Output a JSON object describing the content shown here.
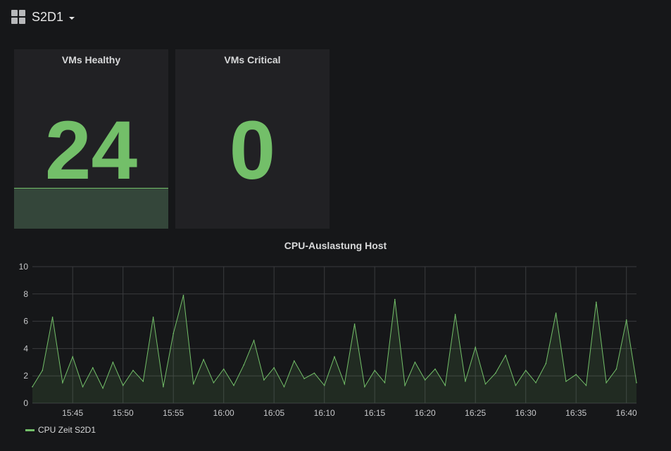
{
  "header": {
    "title": "S2D1"
  },
  "panels": [
    {
      "title": "VMs Healthy",
      "value": "24"
    },
    {
      "title": "VMs Critical",
      "value": "0"
    }
  ],
  "graph": {
    "title": "CPU-Auslastung Host",
    "legend": [
      {
        "name": "CPU Zeit S2D1",
        "color": "#73bf69"
      }
    ]
  },
  "chart_data": {
    "type": "line",
    "title": "CPU-Auslastung Host",
    "xlabel": "",
    "ylabel": "",
    "ylim": [
      0,
      10
    ],
    "yticks": [
      "0",
      "2",
      "4",
      "6",
      "8",
      "10"
    ],
    "xlim": [
      "15:41",
      "16:41"
    ],
    "xticks": [
      "15:45",
      "15:50",
      "15:55",
      "16:00",
      "16:05",
      "16:10",
      "16:15",
      "16:20",
      "16:25",
      "16:30",
      "16:35",
      "16:40"
    ],
    "grid": true,
    "legend_position": "bottom-left",
    "series": [
      {
        "name": "CPU Zeit S2D1",
        "color": "#73bf69",
        "x": [
          "15:41",
          "15:42",
          "15:43",
          "15:44",
          "15:45",
          "15:46",
          "15:47",
          "15:48",
          "15:49",
          "15:50",
          "15:51",
          "15:52",
          "15:53",
          "15:54",
          "15:55",
          "15:56",
          "15:57",
          "15:58",
          "15:59",
          "16:00",
          "16:01",
          "16:02",
          "16:03",
          "16:04",
          "16:05",
          "16:06",
          "16:07",
          "16:08",
          "16:09",
          "16:10",
          "16:11",
          "16:12",
          "16:13",
          "16:14",
          "16:15",
          "16:16",
          "16:17",
          "16:18",
          "16:19",
          "16:20",
          "16:21",
          "16:22",
          "16:23",
          "16:24",
          "16:25",
          "16:26",
          "16:27",
          "16:28",
          "16:29",
          "16:30",
          "16:31",
          "16:32",
          "16:33",
          "16:34",
          "16:35",
          "16:36",
          "16:37",
          "16:38",
          "16:39",
          "16:40",
          "16:41"
        ],
        "values": [
          1.2,
          2.4,
          6.3,
          1.5,
          3.4,
          1.2,
          2.6,
          1.1,
          3.0,
          1.3,
          2.4,
          1.6,
          6.3,
          1.2,
          5.1,
          7.9,
          1.4,
          3.2,
          1.5,
          2.5,
          1.3,
          2.8,
          4.6,
          1.7,
          2.6,
          1.2,
          3.1,
          1.8,
          2.2,
          1.3,
          3.4,
          1.4,
          5.8,
          1.2,
          2.4,
          1.5,
          7.6,
          1.3,
          3.0,
          1.7,
          2.5,
          1.3,
          6.5,
          1.6,
          4.1,
          1.4,
          2.2,
          3.5,
          1.3,
          2.4,
          1.5,
          2.9,
          6.6,
          1.6,
          2.1,
          1.3,
          7.4,
          1.5,
          2.5,
          6.1,
          1.5
        ]
      }
    ]
  }
}
